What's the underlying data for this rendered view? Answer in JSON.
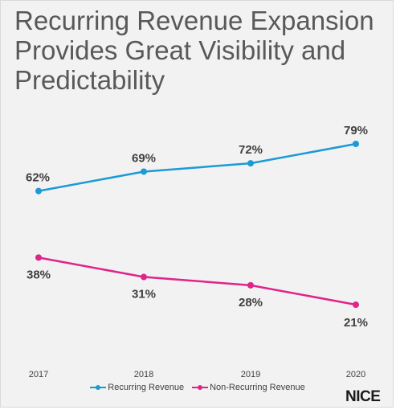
{
  "title": "Recurring Revenue Expansion Provides Great Visibility and Predictability",
  "logo_text": "NICE",
  "chart_data": {
    "type": "line",
    "categories": [
      "2017",
      "2018",
      "2019",
      "2020"
    ],
    "series": [
      {
        "name": "Recurring Revenue",
        "color": "#1b9ad6",
        "values": [
          62,
          69,
          72,
          79
        ],
        "labels": [
          "62%",
          "69%",
          "72%",
          "79%"
        ]
      },
      {
        "name": "Non-Recurring Revenue",
        "color": "#e0248a",
        "values": [
          38,
          31,
          28,
          21
        ],
        "labels": [
          "38%",
          "31%",
          "28%",
          "21%"
        ]
      }
    ],
    "ylim": [
      0,
      100
    ],
    "grid": false,
    "legend": "bottom",
    "xlabel": "",
    "ylabel": ""
  }
}
